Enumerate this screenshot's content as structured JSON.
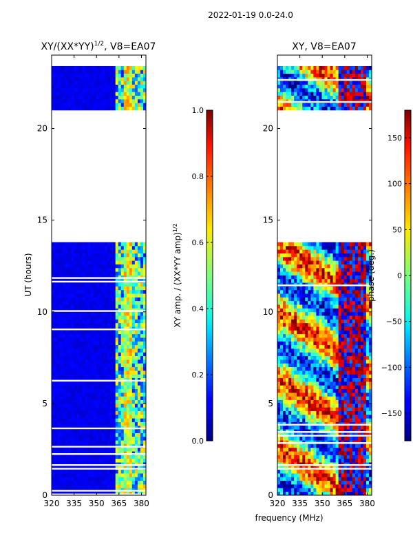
{
  "suptitle": "2022-01-19 0.0-24.0",
  "chart_data": [
    {
      "type": "heatmap",
      "title": "XY/(XX*YY)",
      "title_superscript": "1/2",
      "title_suffix": ", V8=EA07",
      "xlabel": "frequency (MHz)",
      "ylabel": "UT (hours)",
      "xlim": [
        320,
        383
      ],
      "ylim": [
        0,
        24
      ],
      "xticks": [
        320,
        335,
        350,
        365,
        380
      ],
      "yticks": [
        0,
        5,
        10,
        15,
        20
      ],
      "data_gap_hours": [
        13.7,
        21.0
      ],
      "colorbar": {
        "label": "XY amp. / (XX*YY amp)",
        "label_superscript": "1/2",
        "range": [
          0.0,
          1.0
        ],
        "ticks": [
          "0.0",
          "0.2",
          "0.4",
          "0.6",
          "0.8",
          "1.0"
        ],
        "colormap": "jet"
      }
    },
    {
      "type": "heatmap",
      "title": "XY, V8=EA07",
      "xlabel": "frequency (MHz)",
      "ylabel": "",
      "xlim": [
        320,
        383
      ],
      "ylim": [
        0,
        24
      ],
      "xticks": [
        320,
        335,
        350,
        365,
        380
      ],
      "yticks": [
        0,
        5,
        10,
        15,
        20
      ],
      "data_gap_hours": [
        13.7,
        21.0
      ],
      "colorbar": {
        "label": "phase (deg.)",
        "range": [
          -180,
          180
        ],
        "ticks": [
          "−150",
          "−100",
          "−50",
          "0",
          "50",
          "100",
          "150"
        ],
        "colormap": "jet"
      }
    }
  ]
}
